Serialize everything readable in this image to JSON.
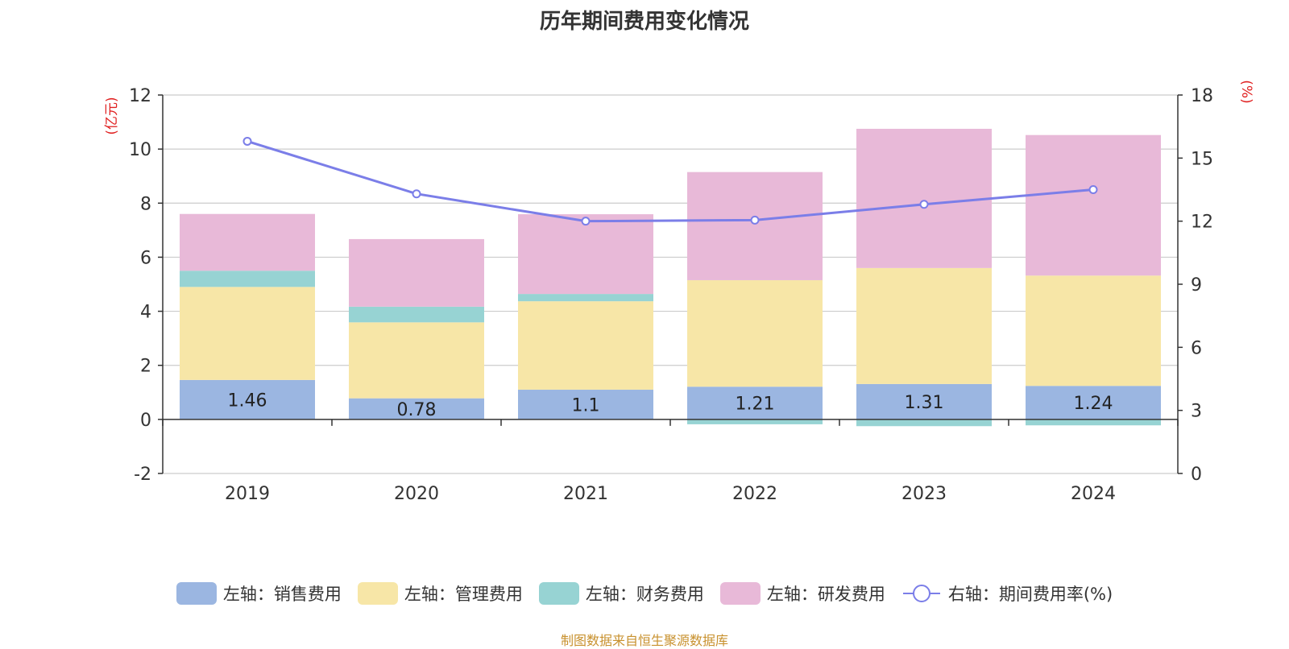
{
  "title": "历年期间费用变化情况",
  "source": "制图数据来自恒生聚源数据库",
  "chart_data": {
    "type": "bar",
    "stacked": true,
    "categories": [
      "2019",
      "2020",
      "2021",
      "2022",
      "2023",
      "2024"
    ],
    "y_left": {
      "label": "(亿元)",
      "range": [
        -2,
        12
      ],
      "ticks": [
        "-2",
        "0",
        "2",
        "4",
        "6",
        "8",
        "10",
        "12"
      ]
    },
    "y_right": {
      "label": "(%)",
      "range": [
        0,
        18
      ],
      "ticks": [
        "0",
        "3",
        "6",
        "9",
        "12",
        "15",
        "18"
      ]
    },
    "grid": true,
    "legend_position": "bottom",
    "series": [
      {
        "name": "左轴：销售费用",
        "axis": "left",
        "type": "bar",
        "color": "#9bb6e1",
        "values": [
          1.46,
          0.78,
          1.1,
          1.21,
          1.31,
          1.24
        ],
        "labels": [
          "1.46",
          "0.78",
          "1.1",
          "1.21",
          "1.31",
          "1.24"
        ]
      },
      {
        "name": "左轴：管理费用",
        "axis": "left",
        "type": "bar",
        "color": "#f7e6a7",
        "values": [
          3.44,
          2.81,
          3.27,
          3.94,
          4.29,
          4.08
        ]
      },
      {
        "name": "左轴：财务费用",
        "axis": "left",
        "type": "bar",
        "color": "#97d3d3",
        "values": [
          0.6,
          0.58,
          0.27,
          -0.18,
          -0.25,
          -0.22
        ]
      },
      {
        "name": "左轴：研发费用",
        "axis": "left",
        "type": "bar",
        "color": "#e8b9d8",
        "values": [
          2.1,
          2.5,
          2.95,
          4.0,
          5.15,
          5.2
        ]
      },
      {
        "name": "右轴：期间费用率(%)",
        "axis": "right",
        "type": "line",
        "color": "#7b7ee8",
        "values": [
          15.8,
          13.3,
          12.0,
          12.05,
          12.8,
          13.5
        ]
      }
    ]
  }
}
